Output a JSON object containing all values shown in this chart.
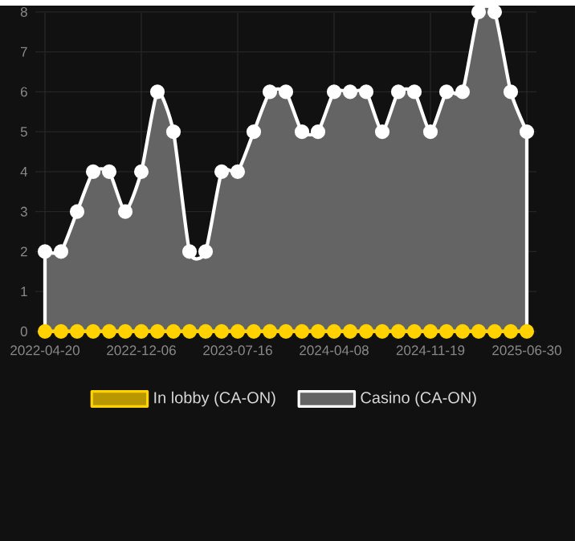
{
  "chart_data": {
    "type": "line",
    "categories": [
      "2022-04-20",
      null,
      null,
      null,
      null,
      null,
      "2022-12-06",
      null,
      null,
      null,
      null,
      null,
      "2023-07-16",
      null,
      null,
      null,
      null,
      null,
      "2024-04-08",
      null,
      null,
      null,
      null,
      null,
      "2024-11-19",
      null,
      null,
      null,
      null,
      null,
      "2025-06-30"
    ],
    "series": [
      {
        "name": "In lobby (CA-ON)",
        "type": "line",
        "color": "#ffd200",
        "values": [
          0,
          0,
          0,
          0,
          0,
          0,
          0,
          0,
          0,
          0,
          0,
          0,
          0,
          0,
          0,
          0,
          0,
          0,
          0,
          0,
          0,
          0,
          0,
          0,
          0,
          0,
          0,
          0,
          0,
          0,
          0
        ]
      },
      {
        "name": "Casino (CA-ON)",
        "type": "area",
        "color": "#ffffff",
        "values": [
          2,
          2,
          3,
          4,
          4,
          3,
          4,
          6,
          5,
          2,
          2,
          4,
          4,
          5,
          6,
          6,
          5,
          5,
          6,
          6,
          6,
          5,
          6,
          6,
          5,
          6,
          6,
          8,
          8,
          6,
          5
        ]
      }
    ],
    "ylim": [
      0,
      8
    ],
    "yticks": [
      0,
      1,
      2,
      3,
      4,
      5,
      6,
      7,
      8
    ],
    "grid": true,
    "legend": "bottom",
    "marker": "circle",
    "line_style": "solid"
  }
}
